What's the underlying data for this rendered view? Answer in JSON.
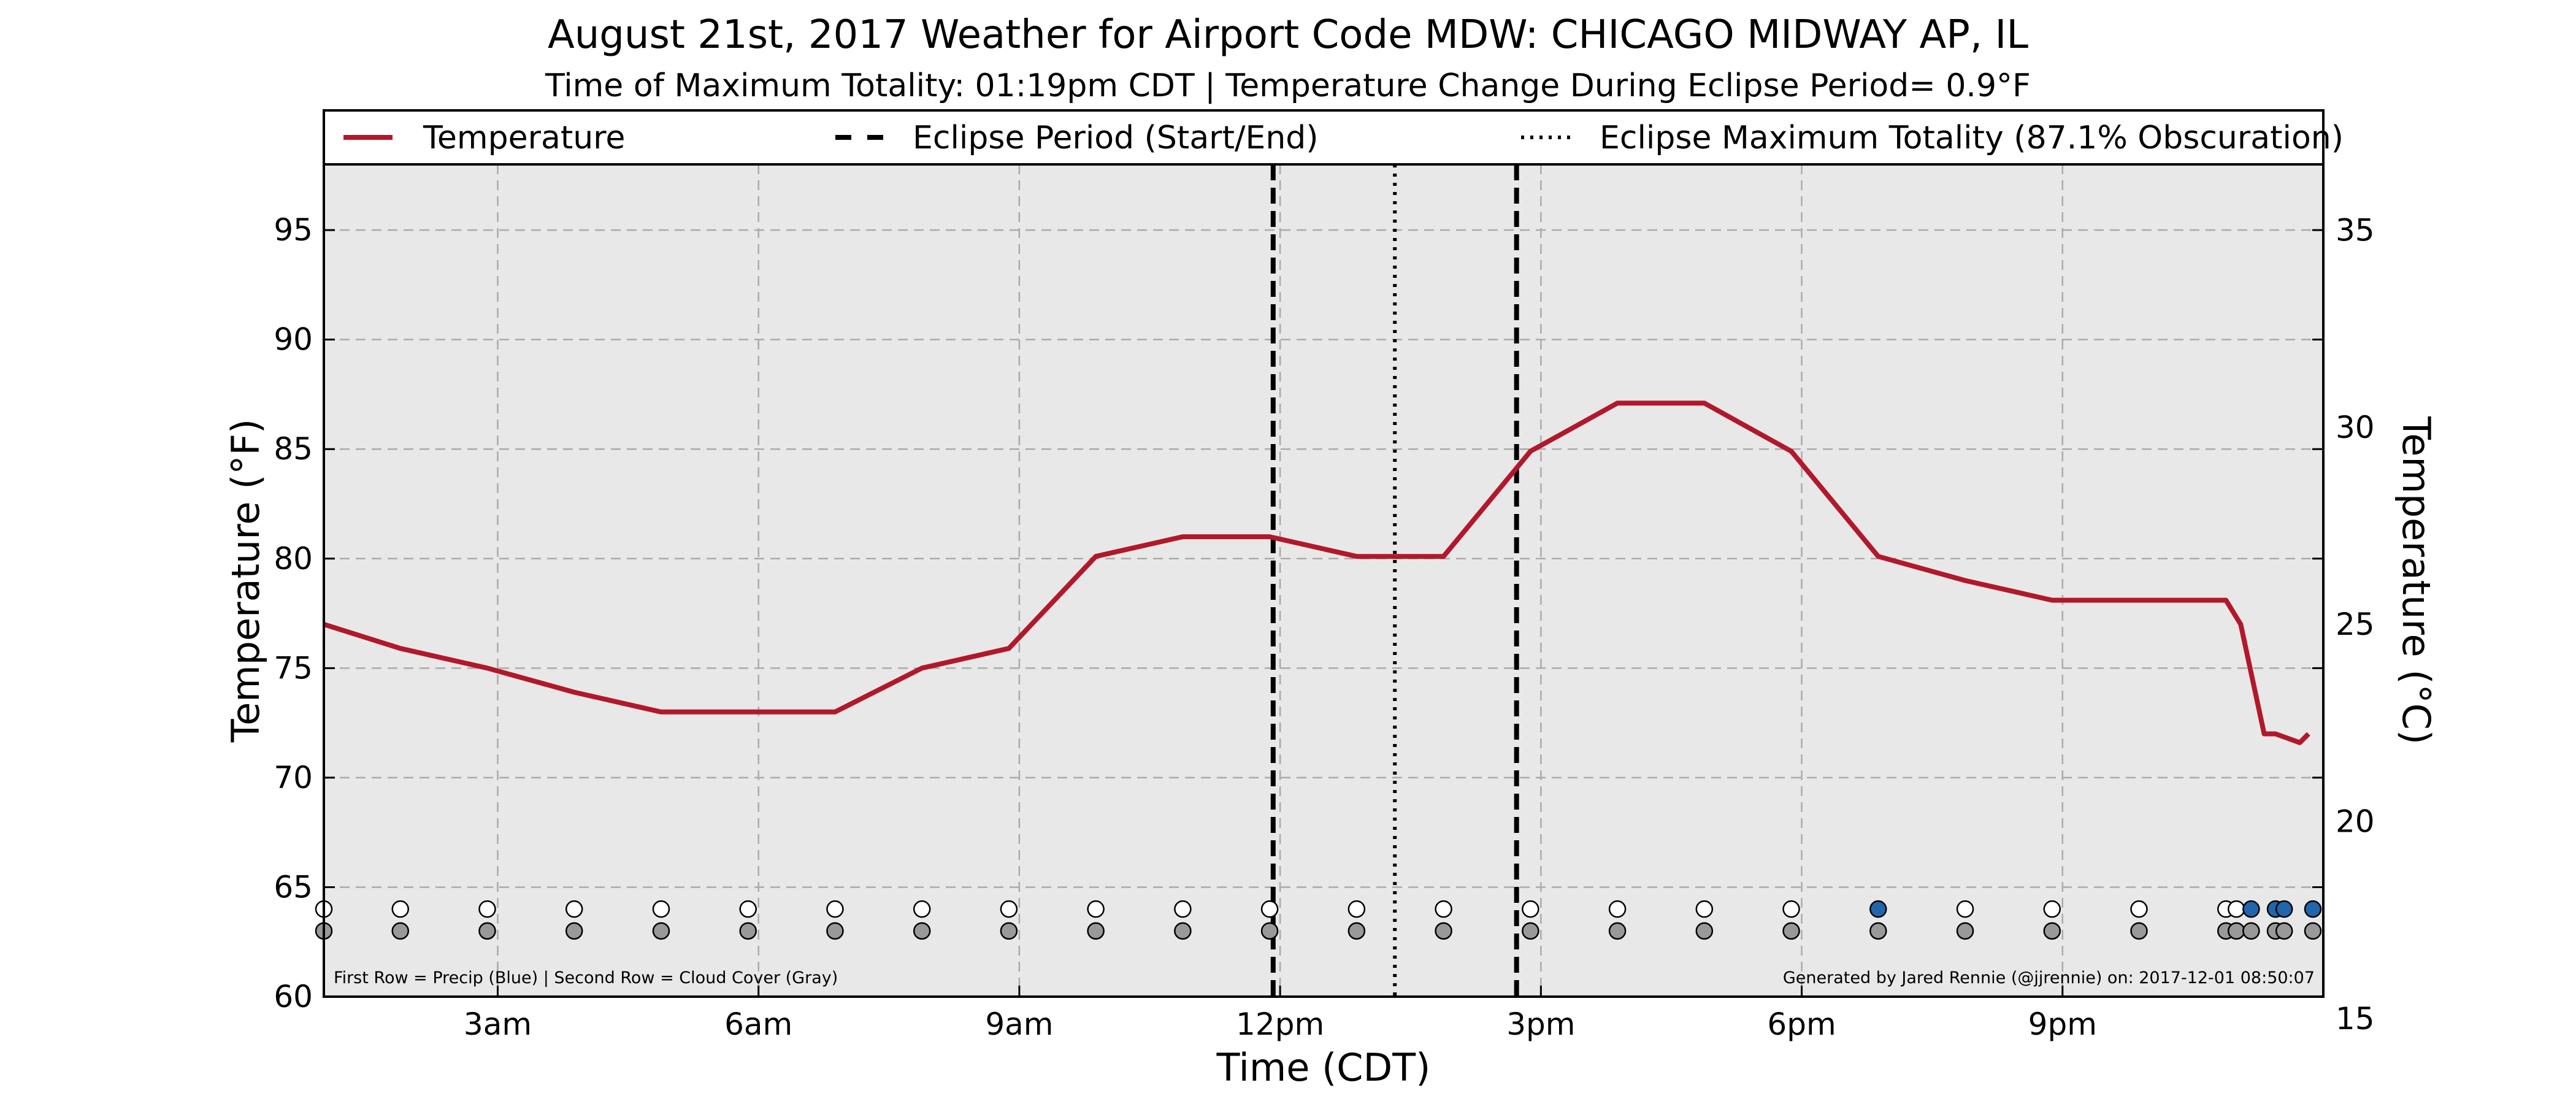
{
  "chart_data": {
    "type": "line",
    "title": "August 21st, 2017 Weather for Airport Code MDW: CHICAGO MIDWAY AP, IL",
    "subtitle": "Time of Maximum Totality: 01:19pm CDT | Temperature Change During Eclipse Period= 0.9°F",
    "xlabel": "Time (CDT)",
    "ylabel": "Temperature (°F)",
    "y2label": "Temperature (°C)",
    "xlim": [
      1.0,
      24.0
    ],
    "ylim": [
      60,
      98
    ],
    "y2lim": [
      15.56,
      36.67
    ],
    "x_ticks": [
      {
        "x": 3,
        "label": "3am"
      },
      {
        "x": 6,
        "label": "6am"
      },
      {
        "x": 9,
        "label": "9am"
      },
      {
        "x": 12,
        "label": "12pm"
      },
      {
        "x": 15,
        "label": "3pm"
      },
      {
        "x": 18,
        "label": "6pm"
      },
      {
        "x": 21,
        "label": "9pm"
      }
    ],
    "y_ticks": [
      60,
      65,
      70,
      75,
      80,
      85,
      90,
      95
    ],
    "y2_ticks": [
      15,
      20,
      25,
      30,
      35
    ],
    "grid": true,
    "legend_position": "top",
    "series": [
      {
        "name": "Temperature",
        "color": "#b2182b",
        "x": [
          1.0,
          1.88,
          2.88,
          3.88,
          4.88,
          5.88,
          6.88,
          7.88,
          8.88,
          9.88,
          10.88,
          11.88,
          12.88,
          13.88,
          14.88,
          15.88,
          16.88,
          17.88,
          18.88,
          19.88,
          20.88,
          21.88,
          22.88,
          23.05,
          23.32,
          23.45,
          23.73,
          23.83
        ],
        "y": [
          77.0,
          75.9,
          75.0,
          73.9,
          73.0,
          73.0,
          73.0,
          75.0,
          75.9,
          80.1,
          81.0,
          81.0,
          80.1,
          80.1,
          84.9,
          87.1,
          87.1,
          84.9,
          80.1,
          79.0,
          78.1,
          78.1,
          78.1,
          77.0,
          72.0,
          72.0,
          71.6,
          72.0
        ]
      }
    ],
    "eclipse": {
      "start": 11.92,
      "end": 14.72,
      "max_totality": 13.32,
      "legend_start_end": "Eclipse Period (Start/End)",
      "legend_max": "Eclipse Maximum Totality (87.1% Obscuration)"
    },
    "precip_row": {
      "label": "First Row = Precip (Blue)",
      "y": 64.0,
      "x": [
        1.0,
        1.88,
        2.88,
        3.88,
        4.88,
        5.88,
        6.88,
        7.88,
        8.88,
        9.88,
        10.88,
        11.88,
        12.88,
        13.88,
        14.88,
        15.88,
        16.88,
        17.88,
        18.88,
        19.88,
        20.88,
        21.88,
        22.88,
        23.0,
        23.17,
        23.45,
        23.55,
        23.88
      ],
      "values": [
        "none",
        "none",
        "none",
        "none",
        "none",
        "none",
        "none",
        "none",
        "none",
        "none",
        "none",
        "none",
        "none",
        "none",
        "none",
        "none",
        "none",
        "none",
        "precip",
        "none",
        "none",
        "none",
        "none",
        "none",
        "precip",
        "precip",
        "precip",
        "precip"
      ]
    },
    "cloud_row": {
      "label": "Second Row = Cloud Cover (Gray)",
      "y": 63.0,
      "x": [
        1.0,
        1.88,
        2.88,
        3.88,
        4.88,
        5.88,
        6.88,
        7.88,
        8.88,
        9.88,
        10.88,
        11.88,
        12.88,
        13.88,
        14.88,
        15.88,
        16.88,
        17.88,
        18.88,
        19.88,
        20.88,
        21.88,
        22.88,
        23.0,
        23.17,
        23.45,
        23.55,
        23.88
      ]
    },
    "footnote_left": "First Row = Precip (Blue) | Second Row = Cloud Cover (Gray)",
    "footnote_right": "Generated by Jared Rennie (@jjrennie) on: 2017-12-01 08:50:07"
  },
  "colors": {
    "temperature_line": "#b2182b",
    "plot_background": "#e8e8e8",
    "grid": "#aaaaaa",
    "precip_marker": "#2166ac",
    "cloud_marker": "#999999",
    "empty_marker": "#ffffff"
  }
}
